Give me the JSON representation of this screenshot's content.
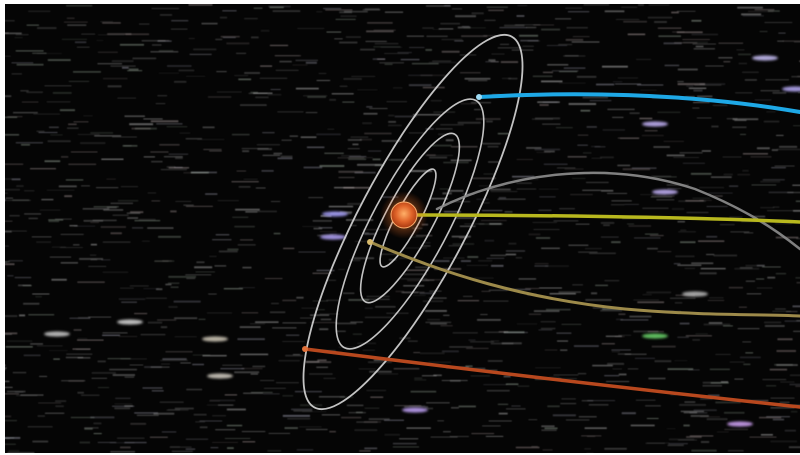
{
  "scene": {
    "background_color": "#050505",
    "sun": {
      "core_color": "#d9531e",
      "glow_color": "#ff8a3c"
    },
    "orbit_color": "#d8d8d8",
    "trails": [
      {
        "name": "blue-trail",
        "color": "#1ea8e6"
      },
      {
        "name": "gray-trail",
        "color": "#8e8e8e"
      },
      {
        "name": "yellow-trail",
        "color": "#b8b81e"
      },
      {
        "name": "olive-trail",
        "color": "#9d8a4a"
      },
      {
        "name": "red-trail",
        "color": "#b8481e"
      }
    ]
  }
}
